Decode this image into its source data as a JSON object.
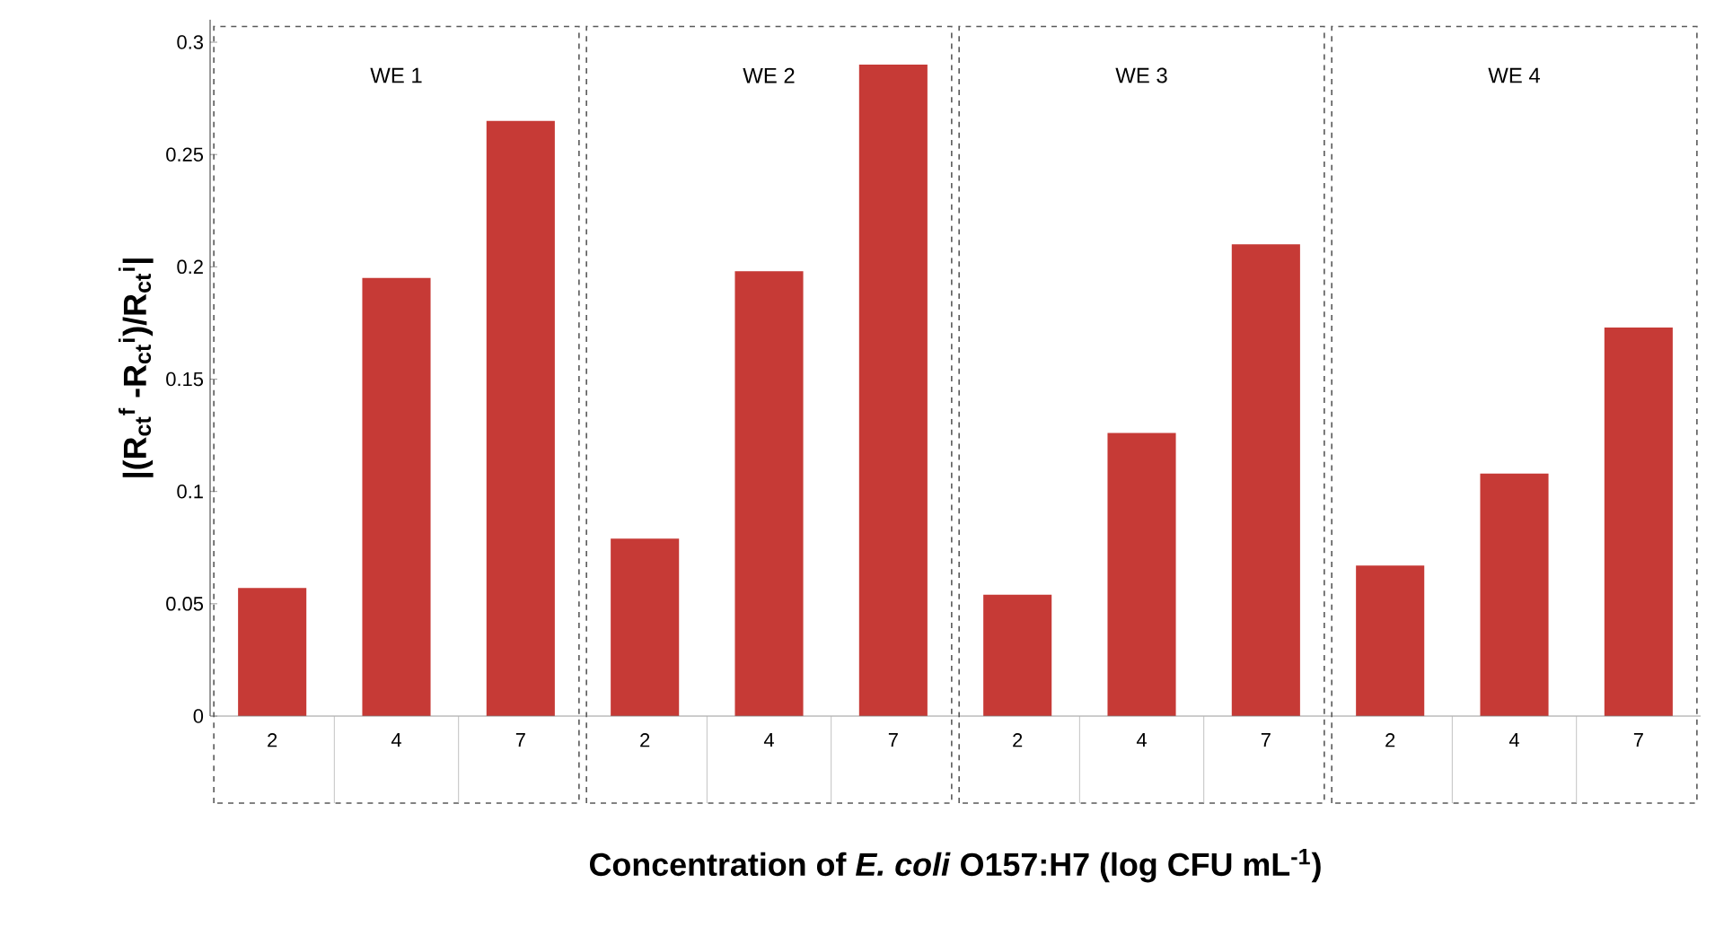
{
  "chart_data": {
    "type": "bar",
    "ylabel": "|(R$_{ct}$$^{f}$ -R$_{ct}$$^{i}$)/R$_{ct}$$^{i}$|",
    "xlabel": "Concentration of *E. coli* O157:H7 (log CFU mL$^{-1}$)",
    "categories": [
      "2",
      "4",
      "7",
      "2",
      "4",
      "7",
      "2",
      "4",
      "7",
      "2",
      "4",
      "7"
    ],
    "values": [
      0.057,
      0.195,
      0.265,
      0.079,
      0.198,
      0.29,
      0.054,
      0.126,
      0.21,
      0.067,
      0.108,
      0.173
    ],
    "color": "#c63a36",
    "annotations": [
      "WE 1",
      "WE 2",
      "WE 3",
      "WE 4"
    ],
    "ylim": [
      0,
      0.31
    ],
    "yticks": [
      0,
      0.05,
      0.1,
      0.15,
      0.2,
      0.25,
      0.3
    ]
  }
}
